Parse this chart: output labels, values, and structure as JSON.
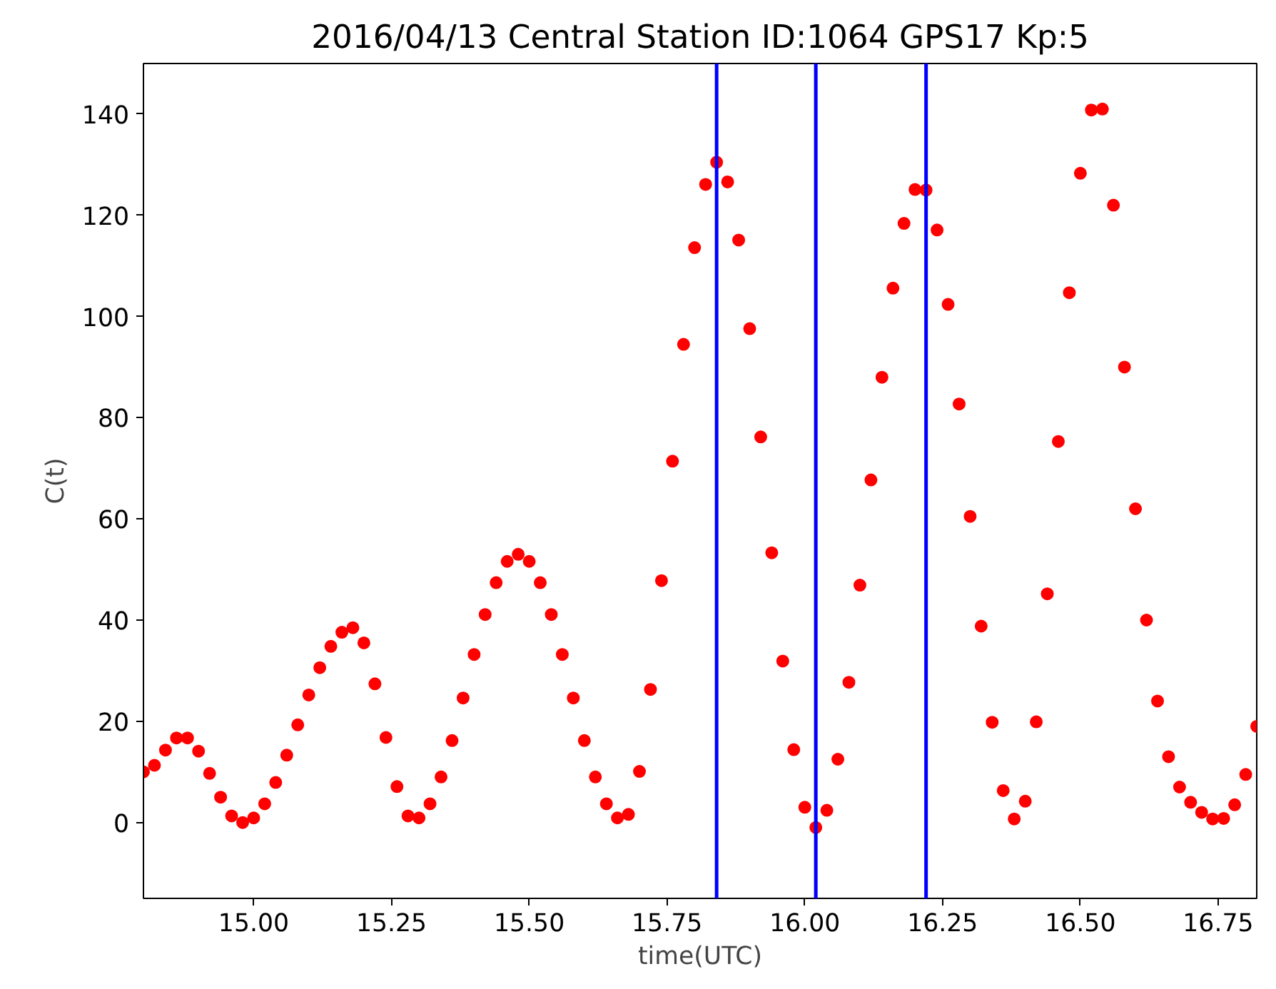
{
  "chart_data": {
    "type": "scatter",
    "title": "2016/04/13 Central Station ID:1064 GPS17 Kp:5",
    "xlabel": "time(UTC)",
    "ylabel": "C(t)",
    "x": [
      14.8,
      14.82,
      14.84,
      14.86,
      14.88,
      14.9,
      14.92,
      14.94,
      14.96,
      14.98,
      15.0,
      15.02,
      15.04,
      15.06,
      15.08,
      15.1,
      15.12,
      15.14,
      15.16,
      15.18,
      15.2,
      15.22,
      15.24,
      15.26,
      15.28,
      15.3,
      15.32,
      15.34,
      15.36,
      15.38,
      15.4,
      15.42,
      15.44,
      15.46,
      15.48,
      15.5,
      15.52,
      15.54,
      15.56,
      15.58,
      15.6,
      15.62,
      15.64,
      15.66,
      15.68,
      15.7,
      15.72,
      15.74,
      15.76,
      15.78,
      15.8,
      15.82,
      15.84,
      15.86,
      15.88,
      15.9,
      15.92,
      15.94,
      15.96,
      15.98,
      16.0,
      16.02,
      16.04,
      16.06,
      16.08,
      16.1,
      16.12,
      16.14,
      16.16,
      16.18,
      16.2,
      16.22,
      16.24,
      16.26,
      16.28,
      16.3,
      16.32,
      16.34,
      16.36,
      16.38,
      16.4,
      16.42,
      16.44,
      16.46,
      16.48,
      16.5,
      16.52,
      16.54,
      16.56,
      16.58,
      16.6,
      16.62,
      16.64,
      16.66,
      16.68,
      16.7,
      16.72,
      16.74,
      16.76,
      16.78,
      16.8,
      16.82
    ],
    "series": [
      {
        "color": "#ff0000",
        "values": [
          10,
          11.3,
          14.3,
          16.7,
          16.7,
          14.1,
          9.7,
          5.0,
          1.3,
          0,
          0.9,
          3.7,
          7.9,
          13.3,
          19.3,
          25.2,
          30.6,
          34.8,
          37.6,
          38.5,
          35.5,
          27.4,
          16.8,
          7.1,
          1.3,
          0.9,
          3.7,
          9.0,
          16.2,
          24.6,
          33.2,
          41.1,
          47.4,
          51.6,
          53,
          51.6,
          47.4,
          41.1,
          33.2,
          24.6,
          16.2,
          9.0,
          3.7,
          0.9,
          1.6,
          10.1,
          26.3,
          47.8,
          71.4,
          94.5,
          113.6,
          126.1,
          130.5,
          126.6,
          115.1,
          97.6,
          76.2,
          53.3,
          31.9,
          14.4,
          3.0,
          -1,
          2.4,
          12.5,
          27.7,
          46.9,
          67.7,
          88.0,
          105.6,
          118.4,
          125.1,
          125.0,
          117.1,
          102.4,
          82.7,
          60.5,
          38.8,
          19.8,
          6.3,
          0.7,
          4.2,
          19.9,
          45.2,
          75.3,
          104.7,
          128.3,
          140.8,
          141,
          122,
          90,
          62,
          40,
          24,
          13,
          7,
          4,
          2,
          0.7,
          0.8,
          3.5,
          9.5,
          19
        ]
      }
    ],
    "marker": "circle",
    "grid": false,
    "xlim": [
      14.8,
      16.82
    ],
    "ylim": [
      -15,
      150
    ],
    "xticks": [
      {
        "value": 15,
        "label": "15.00"
      },
      {
        "value": 15.25,
        "label": "15.25"
      },
      {
        "value": 15.5,
        "label": "15.50"
      },
      {
        "value": 15.75,
        "label": "15.75"
      },
      {
        "value": 16,
        "label": "16.00"
      },
      {
        "value": 16.25,
        "label": "16.25"
      },
      {
        "value": 16.5,
        "label": "16.50"
      },
      {
        "value": 16.75,
        "label": "16.75"
      }
    ],
    "yticks": [
      0,
      20,
      40,
      60,
      80,
      100,
      120,
      140
    ],
    "ref_lines": [
      {
        "axis": "x",
        "value": 15.84,
        "color": "#0000ff"
      },
      {
        "axis": "x",
        "value": 16.02,
        "color": "#0000ff"
      },
      {
        "axis": "x",
        "value": 16.22,
        "color": "#0000ff"
      }
    ]
  }
}
